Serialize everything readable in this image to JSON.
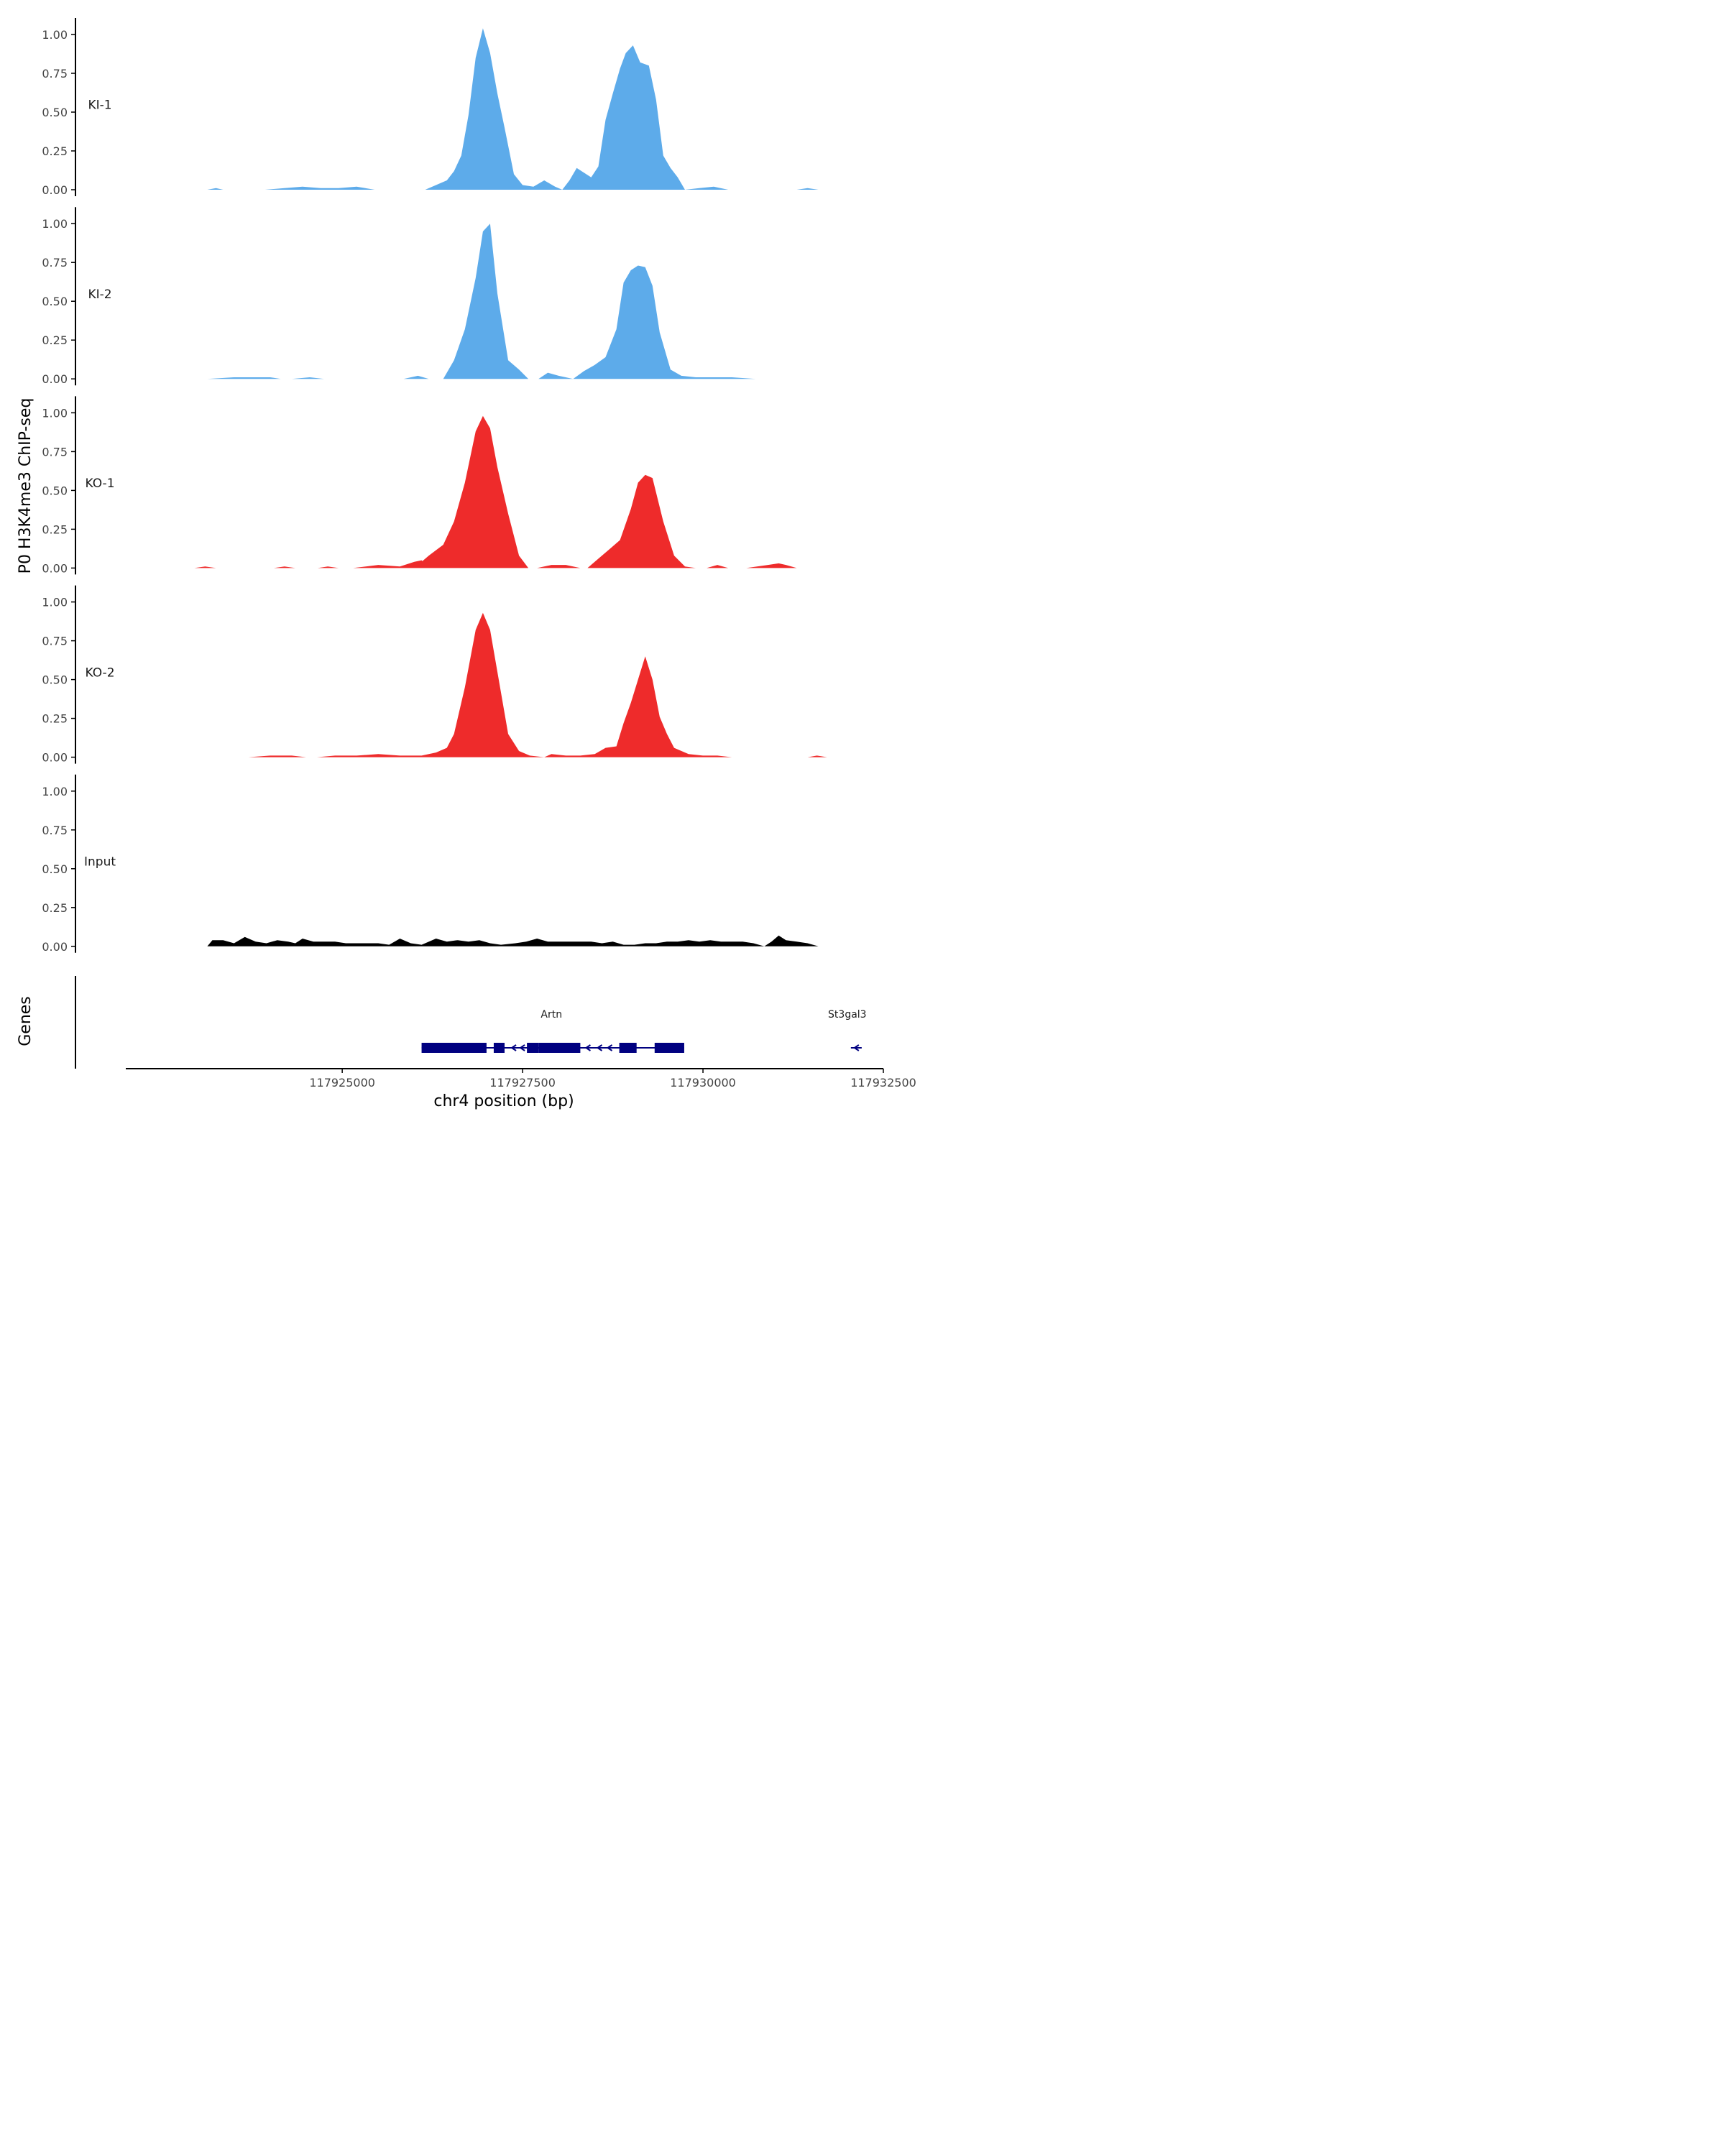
{
  "chart_data": {
    "type": "area",
    "ylabel": "P0 H3K4me3 ChIP-seq",
    "xlabel": "chr4 position (bp)",
    "genes_label": "Genes",
    "xlim": [
      117922000,
      117932500
    ],
    "ylim": [
      0,
      1.1
    ],
    "yticks": [
      "0.00",
      "0.25",
      "0.50",
      "0.75",
      "1.00"
    ],
    "xticks": [
      "117925000",
      "117927500",
      "117930000",
      "117932500"
    ],
    "colors": {
      "KI": "#5dabea",
      "KO": "#ee2b2b",
      "Input": "#000000",
      "gene": "#000080"
    },
    "tracks": [
      {
        "name": "KI-1",
        "color": "#5dabea",
        "points": [
          [
            117923130,
            0
          ],
          [
            117923250,
            0.01
          ],
          [
            117923350,
            0
          ],
          [
            117923930,
            0
          ],
          [
            117924200,
            0.01
          ],
          [
            117924450,
            0.02
          ],
          [
            117924700,
            0.01
          ],
          [
            117924950,
            0.01
          ],
          [
            117925200,
            0.02
          ],
          [
            117925450,
            0
          ],
          [
            117926150,
            0
          ],
          [
            117926300,
            0.03
          ],
          [
            117926450,
            0.06
          ],
          [
            117926550,
            0.12
          ],
          [
            117926650,
            0.22
          ],
          [
            117926750,
            0.48
          ],
          [
            117926850,
            0.85
          ],
          [
            117926950,
            1.04
          ],
          [
            117927050,
            0.88
          ],
          [
            117927150,
            0.62
          ],
          [
            117927250,
            0.4
          ],
          [
            117927380,
            0.1
          ],
          [
            117927500,
            0.03
          ],
          [
            117927650,
            0.02
          ],
          [
            117927800,
            0.06
          ],
          [
            117927950,
            0.02
          ],
          [
            117928050,
            0
          ],
          [
            117928150,
            0.06
          ],
          [
            117928250,
            0.14
          ],
          [
            117928350,
            0.11
          ],
          [
            117928450,
            0.08
          ],
          [
            117928550,
            0.15
          ],
          [
            117928650,
            0.45
          ],
          [
            117928750,
            0.62
          ],
          [
            117928850,
            0.78
          ],
          [
            117928930,
            0.88
          ],
          [
            117929030,
            0.93
          ],
          [
            117929130,
            0.82
          ],
          [
            117929250,
            0.8
          ],
          [
            117929350,
            0.58
          ],
          [
            117929450,
            0.22
          ],
          [
            117929550,
            0.14
          ],
          [
            117929650,
            0.08
          ],
          [
            117929750,
            0
          ],
          [
            117929950,
            0.01
          ],
          [
            117930150,
            0.02
          ],
          [
            117930350,
            0
          ],
          [
            117931300,
            0
          ],
          [
            117931450,
            0.01
          ],
          [
            117931600,
            0
          ]
        ]
      },
      {
        "name": "KI-2",
        "color": "#5dabea",
        "points": [
          [
            117923130,
            0
          ],
          [
            117923500,
            0.01
          ],
          [
            117924000,
            0.01
          ],
          [
            117924150,
            0
          ],
          [
            117924300,
            0
          ],
          [
            117924550,
            0.01
          ],
          [
            117924750,
            0
          ],
          [
            117925050,
            0
          ],
          [
            117925200,
            0
          ],
          [
            117925850,
            0
          ],
          [
            117926050,
            0.02
          ],
          [
            117926200,
            0
          ],
          [
            117926400,
            0
          ],
          [
            117926550,
            0.12
          ],
          [
            117926700,
            0.32
          ],
          [
            117926850,
            0.65
          ],
          [
            117926950,
            0.95
          ],
          [
            117927050,
            1.0
          ],
          [
            117927150,
            0.55
          ],
          [
            117927300,
            0.12
          ],
          [
            117927450,
            0.06
          ],
          [
            117927580,
            0
          ],
          [
            117927720,
            0
          ],
          [
            117927850,
            0.04
          ],
          [
            117928000,
            0.02
          ],
          [
            117928200,
            0
          ],
          [
            117928350,
            0.05
          ],
          [
            117928500,
            0.09
          ],
          [
            117928650,
            0.14
          ],
          [
            117928800,
            0.32
          ],
          [
            117928900,
            0.62
          ],
          [
            117929000,
            0.7
          ],
          [
            117929100,
            0.73
          ],
          [
            117929200,
            0.72
          ],
          [
            117929300,
            0.6
          ],
          [
            117929400,
            0.3
          ],
          [
            117929550,
            0.06
          ],
          [
            117929700,
            0.02
          ],
          [
            117929900,
            0.01
          ],
          [
            117930400,
            0.01
          ],
          [
            117930730,
            0
          ]
        ]
      },
      {
        "name": "KO-1",
        "color": "#ee2b2b",
        "points": [
          [
            117922950,
            0
          ],
          [
            117923100,
            0.01
          ],
          [
            117923250,
            0
          ],
          [
            117924050,
            0
          ],
          [
            117924200,
            0.01
          ],
          [
            117924350,
            0
          ],
          [
            117924660,
            0
          ],
          [
            117924800,
            0.01
          ],
          [
            117924950,
            0
          ],
          [
            117925150,
            0
          ],
          [
            117925500,
            0.02
          ],
          [
            117925800,
            0.01
          ],
          [
            117926000,
            0.04
          ],
          [
            117926100,
            0.05
          ],
          [
            117926200,
            0
          ],
          [
            117926000,
            0
          ],
          [
            117926200,
            0.08
          ],
          [
            117926400,
            0.15
          ],
          [
            117926550,
            0.3
          ],
          [
            117926700,
            0.55
          ],
          [
            117926850,
            0.88
          ],
          [
            117926950,
            0.98
          ],
          [
            117927050,
            0.9
          ],
          [
            117927150,
            0.65
          ],
          [
            117927300,
            0.35
          ],
          [
            117927450,
            0.08
          ],
          [
            117927580,
            0
          ],
          [
            117927700,
            0
          ],
          [
            117927900,
            0.02
          ],
          [
            117928100,
            0.02
          ],
          [
            117928300,
            0
          ],
          [
            117928400,
            0
          ],
          [
            117928550,
            0.06
          ],
          [
            117928700,
            0.12
          ],
          [
            117928850,
            0.18
          ],
          [
            117929000,
            0.38
          ],
          [
            117929100,
            0.55
          ],
          [
            117929200,
            0.6
          ],
          [
            117929300,
            0.58
          ],
          [
            117929450,
            0.3
          ],
          [
            117929600,
            0.08
          ],
          [
            117929750,
            0.01
          ],
          [
            117929900,
            0
          ],
          [
            117930050,
            0
          ],
          [
            117930200,
            0.02
          ],
          [
            117930350,
            0
          ],
          [
            117930600,
            0
          ],
          [
            117930900,
            0.02
          ],
          [
            117931050,
            0.03
          ],
          [
            117931150,
            0.02
          ],
          [
            117931300,
            0
          ]
        ]
      },
      {
        "name": "KO-2",
        "color": "#ee2b2b",
        "points": [
          [
            117923700,
            0
          ],
          [
            117924000,
            0.01
          ],
          [
            117924300,
            0.01
          ],
          [
            117924500,
            0
          ],
          [
            117924650,
            0
          ],
          [
            117924900,
            0.01
          ],
          [
            117925200,
            0.01
          ],
          [
            117925500,
            0.02
          ],
          [
            117925800,
            0.01
          ],
          [
            117926100,
            0.01
          ],
          [
            117926300,
            0.03
          ],
          [
            117926450,
            0.06
          ],
          [
            117926550,
            0.15
          ],
          [
            117926700,
            0.45
          ],
          [
            117926850,
            0.82
          ],
          [
            117926950,
            0.93
          ],
          [
            117927050,
            0.82
          ],
          [
            117927150,
            0.55
          ],
          [
            117927300,
            0.15
          ],
          [
            117927450,
            0.04
          ],
          [
            117927600,
            0.01
          ],
          [
            117927800,
            0
          ],
          [
            117927900,
            0.02
          ],
          [
            117928100,
            0.01
          ],
          [
            117928300,
            0.01
          ],
          [
            117928500,
            0.02
          ],
          [
            117928650,
            0.06
          ],
          [
            117928800,
            0.07
          ],
          [
            117928900,
            0.22
          ],
          [
            117929000,
            0.35
          ],
          [
            117929100,
            0.5
          ],
          [
            117929200,
            0.65
          ],
          [
            117929300,
            0.5
          ],
          [
            117929400,
            0.26
          ],
          [
            117929500,
            0.15
          ],
          [
            117929600,
            0.06
          ],
          [
            117929800,
            0.02
          ],
          [
            117930000,
            0.01
          ],
          [
            117930200,
            0.01
          ],
          [
            117930400,
            0
          ],
          [
            117931450,
            0
          ],
          [
            117931580,
            0.01
          ],
          [
            117931720,
            0
          ]
        ]
      },
      {
        "name": "Input",
        "color": "#000000",
        "points": [
          [
            117923130,
            0
          ],
          [
            117923200,
            0.04
          ],
          [
            117923350,
            0.04
          ],
          [
            117923500,
            0.02
          ],
          [
            117923650,
            0.06
          ],
          [
            117923800,
            0.03
          ],
          [
            117923950,
            0.02
          ],
          [
            117924100,
            0.04
          ],
          [
            117924250,
            0.03
          ],
          [
            117924350,
            0.02
          ],
          [
            117924450,
            0.05
          ],
          [
            117924600,
            0.03
          ],
          [
            117924750,
            0.03
          ],
          [
            117924900,
            0.03
          ],
          [
            117925050,
            0.02
          ],
          [
            117925200,
            0.02
          ],
          [
            117925350,
            0.02
          ],
          [
            117925500,
            0.02
          ],
          [
            117925650,
            0.01
          ],
          [
            117925800,
            0.05
          ],
          [
            117925950,
            0.02
          ],
          [
            117926100,
            0.01
          ],
          [
            117926300,
            0.05
          ],
          [
            117926450,
            0.03
          ],
          [
            117926600,
            0.04
          ],
          [
            117926750,
            0.03
          ],
          [
            117926900,
            0.04
          ],
          [
            117927050,
            0.02
          ],
          [
            117927200,
            0.01
          ],
          [
            117927400,
            0.02
          ],
          [
            117927550,
            0.03
          ],
          [
            117927700,
            0.05
          ],
          [
            117927850,
            0.03
          ],
          [
            117928000,
            0.03
          ],
          [
            117928150,
            0.03
          ],
          [
            117928300,
            0.03
          ],
          [
            117928450,
            0.03
          ],
          [
            117928600,
            0.02
          ],
          [
            117928750,
            0.03
          ],
          [
            117928900,
            0.01
          ],
          [
            117929050,
            0.01
          ],
          [
            117929200,
            0.02
          ],
          [
            117929350,
            0.02
          ],
          [
            117929500,
            0.03
          ],
          [
            117929650,
            0.03
          ],
          [
            117929800,
            0.04
          ],
          [
            117929950,
            0.03
          ],
          [
            117930100,
            0.04
          ],
          [
            117930250,
            0.03
          ],
          [
            117930400,
            0.03
          ],
          [
            117930550,
            0.03
          ],
          [
            117930700,
            0.02
          ],
          [
            117930850,
            0
          ],
          [
            117930950,
            0.03
          ],
          [
            117931050,
            0.07
          ],
          [
            117931150,
            0.04
          ],
          [
            117931300,
            0.03
          ],
          [
            117931450,
            0.02
          ],
          [
            117931600,
            0
          ]
        ]
      }
    ],
    "genes": [
      {
        "name": "Artn",
        "strand": "-",
        "start": 117926100,
        "end": 117929740,
        "label_pos": 117927900,
        "exons": [
          [
            117926100,
            117927000
          ],
          [
            117927100,
            117927250
          ],
          [
            117927560,
            117927720
          ],
          [
            117927720,
            117928300
          ],
          [
            117928840,
            117929080
          ],
          [
            117929330,
            117929740
          ]
        ],
        "arrow_positions": [
          117927370,
          117927490,
          117928400,
          117928560,
          117928700,
          117928950
        ]
      },
      {
        "name": "St3gal3",
        "strand": "-",
        "start": 117932050,
        "end": 117932200,
        "label_pos": 117932000,
        "exons": [],
        "arrow_positions": [
          117932120
        ]
      }
    ]
  }
}
